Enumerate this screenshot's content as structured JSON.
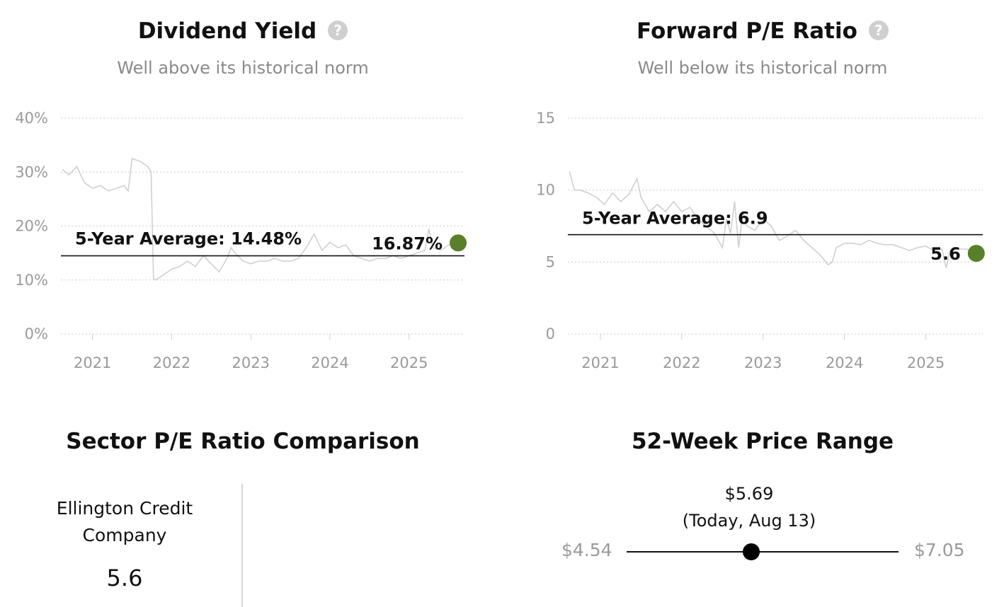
{
  "dividend_yield": {
    "title": "Dividend Yield",
    "subtitle": "Well above its historical norm",
    "help_icon": "question-circle-icon"
  },
  "forward_pe": {
    "title": "Forward P/E Ratio",
    "subtitle": "Well below its historical norm",
    "help_icon": "question-circle-icon"
  },
  "sector_pe": {
    "title": "Sector P/E Ratio Comparison",
    "company_name": "Ellington Credit Company",
    "company_value": "5.6"
  },
  "price_range": {
    "title": "52-Week Price Range",
    "current_price": "$5.69",
    "current_label": "(Today, Aug 13)",
    "low": "$4.54",
    "high": "$7.05",
    "low_value": 4.54,
    "high_value": 7.05,
    "current_value": 5.69
  },
  "colors": {
    "accent_green": "#5a7f2b",
    "series_gray": "#d0d0d0",
    "grid_gray": "#cccccc",
    "muted_text": "#9a9a9a"
  },
  "chart_data": [
    {
      "type": "line",
      "title": "Dividend Yield",
      "xlabel": "",
      "ylabel": "",
      "y_tick_labels": [
        "0%",
        "10%",
        "20%",
        "30%",
        "40%"
      ],
      "ylim": [
        0,
        40
      ],
      "x_tick_labels": [
        "2021",
        "2022",
        "2023",
        "2024",
        "2025"
      ],
      "xlim": [
        2020.6,
        2025.7
      ],
      "grid": true,
      "average": {
        "label": "5-Year Average: 14.48%",
        "value": 14.48
      },
      "current": {
        "label": "16.87%",
        "value": 16.87,
        "x": 2025.62
      },
      "series": [
        {
          "x": [
            2020.62,
            2020.7,
            2020.8,
            2020.9,
            2021.0,
            2021.1,
            2021.2,
            2021.3,
            2021.4,
            2021.45,
            2021.5,
            2021.6,
            2021.7,
            2021.74,
            2021.77,
            2021.8,
            2021.9,
            2022.0,
            2022.1,
            2022.2,
            2022.3,
            2022.4,
            2022.5,
            2022.6,
            2022.7,
            2022.75,
            2022.8,
            2022.9,
            2023.0,
            2023.1,
            2023.2,
            2023.3,
            2023.4,
            2023.5,
            2023.6,
            2023.7,
            2023.8,
            2023.9,
            2024.0,
            2024.1,
            2024.2,
            2024.3,
            2024.4,
            2024.5,
            2024.6,
            2024.7,
            2024.8,
            2024.9,
            2025.0,
            2025.1,
            2025.2,
            2025.25,
            2025.3,
            2025.4,
            2025.5,
            2025.6
          ],
          "values": [
            30.5,
            29.5,
            31,
            28,
            27,
            27.5,
            26.5,
            27,
            27.5,
            26.5,
            32.5,
            32,
            31,
            30,
            10.2,
            10,
            11,
            12,
            12.5,
            13.5,
            12.5,
            14.5,
            13,
            11.5,
            14,
            16,
            15,
            13.5,
            13,
            13.5,
            13.5,
            14,
            13.5,
            13.5,
            14,
            16,
            18.5,
            15.5,
            17,
            16,
            16.5,
            14.5,
            14,
            13.5,
            14,
            14,
            14.5,
            14,
            14.5,
            15,
            15.5,
            19.5,
            16,
            15.5,
            16.5,
            16.8
          ]
        }
      ]
    },
    {
      "type": "line",
      "title": "Forward P/E Ratio",
      "xlabel": "",
      "ylabel": "",
      "y_tick_labels": [
        "0",
        "5",
        "10",
        "15"
      ],
      "ylim": [
        0,
        15
      ],
      "x_tick_labels": [
        "2021",
        "2022",
        "2023",
        "2024",
        "2025"
      ],
      "xlim": [
        2020.6,
        2025.7
      ],
      "grid": true,
      "average": {
        "label": "5-Year Average: 6.9",
        "value": 6.9
      },
      "current": {
        "label": "5.6",
        "value": 5.6,
        "x": 2025.62
      },
      "series": [
        {
          "x": [
            2020.62,
            2020.68,
            2020.75,
            2020.85,
            2020.95,
            2021.05,
            2021.15,
            2021.25,
            2021.35,
            2021.45,
            2021.5,
            2021.6,
            2021.7,
            2021.8,
            2021.9,
            2022.0,
            2022.1,
            2022.2,
            2022.3,
            2022.4,
            2022.5,
            2022.55,
            2022.6,
            2022.65,
            2022.7,
            2022.75,
            2022.8,
            2022.9,
            2023.0,
            2023.1,
            2023.2,
            2023.3,
            2023.4,
            2023.5,
            2023.6,
            2023.7,
            2023.8,
            2023.85,
            2023.9,
            2024.0,
            2024.1,
            2024.2,
            2024.3,
            2024.4,
            2024.5,
            2024.6,
            2024.7,
            2024.8,
            2024.9,
            2025.0,
            2025.1,
            2025.2,
            2025.25,
            2025.3,
            2025.4,
            2025.5,
            2025.6
          ],
          "values": [
            11.3,
            10,
            10,
            9.8,
            9.5,
            9,
            9.8,
            9.2,
            9.7,
            10.8,
            9.5,
            8.5,
            9,
            8.5,
            9.2,
            8.5,
            8.8,
            8,
            7.5,
            7,
            6,
            8,
            7,
            9.2,
            6,
            8.5,
            7.5,
            7.2,
            8,
            7.5,
            6.5,
            6.8,
            7.2,
            6.5,
            6,
            5.5,
            4.8,
            5,
            6,
            6.3,
            6.3,
            6.2,
            6.5,
            6.3,
            6.2,
            6.2,
            6,
            5.8,
            6,
            6.1,
            5.8,
            5.9,
            4.6,
            5.8,
            5.9,
            5.9,
            5.6
          ]
        }
      ]
    }
  ]
}
